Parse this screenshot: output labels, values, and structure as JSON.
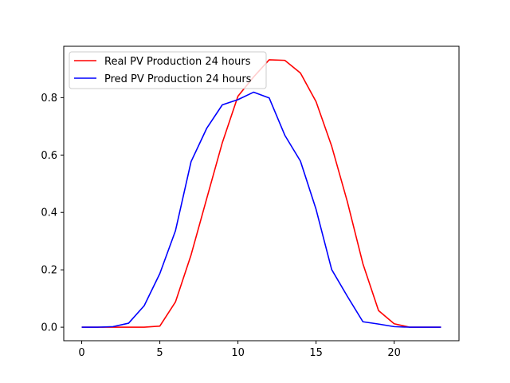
{
  "chart_data": {
    "type": "line",
    "title": "",
    "xlabel": "",
    "ylabel": "",
    "xlim": [
      -1.15,
      24.15
    ],
    "ylim": [
      -0.047,
      0.979
    ],
    "x_ticks": [
      0,
      5,
      10,
      15,
      20
    ],
    "y_ticks": [
      0.0,
      0.2,
      0.4,
      0.6,
      0.8
    ],
    "x_tick_labels": [
      "0",
      "5",
      "10",
      "15",
      "20"
    ],
    "y_tick_labels": [
      "0.0",
      "0.2",
      "0.4",
      "0.6",
      "0.8"
    ],
    "grid": false,
    "legend_position": "top-left",
    "x": [
      0,
      1,
      2,
      3,
      4,
      5,
      6,
      7,
      8,
      9,
      10,
      11,
      12,
      13,
      14,
      15,
      16,
      17,
      18,
      19,
      20,
      21,
      22,
      23
    ],
    "series": [
      {
        "name": "Real PV Production 24 hours",
        "color": "#ff0000",
        "values": [
          0.0,
          0.0,
          0.0,
          0.0,
          0.0,
          0.004,
          0.088,
          0.252,
          0.448,
          0.643,
          0.805,
          0.872,
          0.932,
          0.93,
          0.886,
          0.786,
          0.631,
          0.438,
          0.221,
          0.058,
          0.012,
          0.0,
          0.0,
          0.0
        ]
      },
      {
        "name": "Pred PV Production 24 hours",
        "color": "#0000ff",
        "values": [
          0.0,
          0.0,
          0.002,
          0.014,
          0.075,
          0.187,
          0.336,
          0.577,
          0.693,
          0.775,
          0.793,
          0.819,
          0.799,
          0.669,
          0.579,
          0.411,
          0.201,
          0.108,
          0.019,
          0.011,
          0.002,
          0.0,
          0.0,
          0.0
        ]
      }
    ]
  }
}
